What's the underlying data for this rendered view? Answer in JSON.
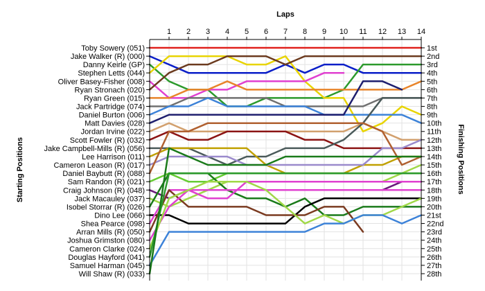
{
  "chart_data": {
    "type": "line",
    "title": "",
    "xlabel": "Laps",
    "ylabel_left": "Starting Positions",
    "ylabel_right": "Finishing Positions",
    "x": [
      0,
      1,
      2,
      3,
      4,
      5,
      6,
      7,
      8,
      9,
      10,
      11,
      12,
      13,
      14
    ],
    "x_tick_labels": [
      "1",
      "2",
      "3",
      "4",
      "5",
      "6",
      "7",
      "8",
      "9",
      "10",
      "11",
      "12",
      "13",
      "14"
    ],
    "ylim": [
      1,
      28
    ],
    "y_inverted": true,
    "grid": true,
    "starting_labels": [
      "Toby Sowery (051)",
      "Jake Walker (R) (000)",
      "Danny Keirle (GP)",
      "Stephen Letts (044)",
      "Oliver Basey-Fisher (008)",
      "Ryan Stronach (020)",
      "Ryan Green (015)",
      "Jack Partridge (074)",
      "Daniel Burton (006)",
      "Matt Davies (028)",
      "Jordan Irvine (022)",
      "Scott Fowler (R) (032)",
      "Jake Campbell-Mills (R) (056)",
      "Lee Harrison (011)",
      "Cameron Leason (R) (017)",
      "Daniel Baybutt (R) (088)",
      "Sam Randon (R) (021)",
      "Craig Johnson (R) (048)",
      "Jack Macauley (037)",
      "Isobel Storrar (R) (026)",
      "Dino Lee (066)",
      "Shea Pearce (098)",
      "Arran Mills (R) (050)",
      "Joshua Grimston (080)",
      "Cameron Clarke (024)",
      "Douglas Hayford (041)",
      "Samuel Harman (045)",
      "Will Shaw (R) (033)"
    ],
    "finishing_labels": [
      "1st",
      "2nd",
      "3rd",
      "4th",
      "5th",
      "6th",
      "7th",
      "8th",
      "9th",
      "10th",
      "11th",
      "12th",
      "13th",
      "14th",
      "15th",
      "16th",
      "17th",
      "18th",
      "19th",
      "20th",
      "21st",
      "22nd",
      "23rd",
      "24th",
      "25th",
      "26th",
      "27th",
      "28th"
    ],
    "series": [
      {
        "start": 1,
        "color": "#e0211c",
        "positions": [
          1,
          1,
          1,
          1,
          1,
          1,
          1,
          1,
          1,
          1,
          1,
          1,
          1,
          1,
          1
        ]
      },
      {
        "start": 2,
        "color": "#0a1ec8",
        "positions": [
          2,
          3,
          4,
          4,
          4,
          4,
          4,
          3,
          4,
          3,
          3,
          4,
          4,
          4,
          4
        ]
      },
      {
        "start": 3,
        "color": "#2c9a2c",
        "positions": [
          3,
          5,
          6,
          6,
          8,
          8,
          7,
          7,
          7,
          7,
          6,
          3,
          3,
          3,
          3
        ]
      },
      {
        "start": 4,
        "color": "#e8d400",
        "positions": [
          4,
          2,
          2,
          2,
          2,
          3,
          3,
          2,
          5,
          7,
          7,
          11,
          10,
          8,
          9
        ]
      },
      {
        "start": 5,
        "color": "#e040d0",
        "positions": [
          5,
          7,
          7,
          6,
          6,
          5,
          5,
          5,
          5,
          4,
          4,
          null,
          null,
          null,
          null
        ]
      },
      {
        "start": 6,
        "color": "#6b3a1e",
        "positions": [
          6,
          4,
          3,
          3,
          2,
          2,
          2,
          3,
          2,
          2,
          2,
          2,
          2,
          2,
          2
        ]
      },
      {
        "start": 7,
        "color": "#e8842a",
        "positions": [
          7,
          7,
          6,
          6,
          5,
          6,
          6,
          6,
          6,
          6,
          6,
          6,
          6,
          6,
          5
        ]
      },
      {
        "start": 8,
        "color": "#707070",
        "positions": [
          8,
          8,
          7,
          7,
          7,
          7,
          7,
          8,
          8,
          8,
          8,
          8,
          7,
          7,
          7
        ]
      },
      {
        "start": 9,
        "color": "#3c82d8",
        "positions": [
          9,
          8,
          8,
          7,
          8,
          8,
          8,
          8,
          8,
          9,
          9,
          9,
          9,
          9,
          10
        ]
      },
      {
        "start": 10,
        "color": "#1e1e6e",
        "positions": [
          10,
          9,
          9,
          9,
          9,
          9,
          9,
          9,
          9,
          9,
          9,
          5,
          5,
          6,
          null
        ]
      },
      {
        "start": 11,
        "color": "#d2a06e",
        "positions": [
          11,
          10,
          11,
          11,
          11,
          11,
          11,
          11,
          11,
          11,
          11,
          10,
          11,
          12,
          12
        ]
      },
      {
        "start": 12,
        "color": "#8c1414",
        "positions": [
          12,
          11,
          12,
          12,
          11,
          11,
          11,
          11,
          12,
          12,
          13,
          13,
          13,
          13,
          13
        ]
      },
      {
        "start": 13,
        "color": "#4a5a5a",
        "positions": [
          13,
          13,
          13,
          14,
          15,
          14,
          14,
          13,
          13,
          13,
          12,
          10,
          7,
          7,
          7
        ]
      },
      {
        "start": 14,
        "color": "#c0a000",
        "positions": [
          14,
          13,
          13,
          13,
          13,
          13,
          15,
          16,
          16,
          16,
          16,
          15,
          15,
          14,
          14
        ]
      },
      {
        "start": 15,
        "color": "#9a8acc",
        "positions": [
          15,
          14,
          14,
          14,
          14,
          15,
          15,
          15,
          15,
          15,
          15,
          15,
          13,
          13,
          12
        ]
      },
      {
        "start": 16,
        "color": "#b06030",
        "positions": [
          16,
          11,
          11,
          10,
          10,
          10,
          10,
          10,
          10,
          10,
          10,
          10,
          11,
          15,
          14
        ]
      },
      {
        "start": 17,
        "color": "#66cc33",
        "positions": [
          17,
          16,
          17,
          17,
          16,
          16,
          16,
          16,
          16,
          16,
          16,
          16,
          16,
          16,
          16
        ]
      },
      {
        "start": 18,
        "color": "#6a1a7a",
        "positions": [
          18,
          19,
          18,
          18,
          18,
          18,
          18,
          18,
          18,
          18,
          18,
          18,
          18,
          17,
          17
        ]
      },
      {
        "start": 19,
        "color": "#a0d848",
        "positions": [
          19,
          20,
          19,
          18,
          17,
          17,
          17,
          17,
          17,
          17,
          17,
          17,
          17,
          16,
          15
        ]
      },
      {
        "start": 20,
        "color": "#1a7a1a",
        "positions": [
          20,
          16,
          16,
          16,
          18,
          19,
          19,
          20,
          19,
          21,
          21,
          20,
          20,
          20,
          20
        ]
      },
      {
        "start": 21,
        "color": "#000000",
        "positions": [
          21,
          21,
          22,
          22,
          22,
          22,
          22,
          22,
          20,
          19,
          19,
          19,
          19,
          19,
          19
        ]
      },
      {
        "start": 22,
        "color": "#e040d0",
        "positions": [
          22,
          18,
          18,
          19,
          19,
          17,
          17,
          17,
          17,
          17,
          17,
          17,
          17,
          17,
          17
        ]
      },
      {
        "start": 23,
        "color": "#7a3a20",
        "positions": [
          23,
          18,
          20,
          20,
          20,
          20,
          21,
          21,
          21,
          20,
          20,
          23,
          null,
          null,
          null
        ]
      },
      {
        "start": 24,
        "color": "#e040d0",
        "positions": [
          24,
          20,
          18,
          18,
          18,
          18,
          18,
          18,
          18,
          18,
          18,
          18,
          18,
          18,
          18
        ]
      },
      {
        "start": 25,
        "color": "#a0d848",
        "positions": [
          25,
          19,
          18,
          17,
          17,
          17,
          18,
          20,
          22,
          21,
          22,
          21,
          21,
          20,
          19
        ]
      },
      {
        "start": 26,
        "color": "#2c9a2c",
        "positions": [
          26,
          16,
          16,
          16,
          16,
          16,
          16,
          16,
          16,
          16,
          16,
          16,
          16,
          16,
          16
        ]
      },
      {
        "start": 27,
        "color": "#3c82d8",
        "positions": [
          27,
          23,
          23,
          23,
          23,
          23,
          23,
          23,
          23,
          22,
          22,
          21,
          21,
          22,
          21
        ]
      },
      {
        "start": 28,
        "color": "#1a7a1a",
        "positions": [
          28,
          13,
          14,
          15,
          15,
          15,
          15,
          14,
          14,
          14,
          14,
          14,
          14,
          14,
          14
        ]
      }
    ]
  }
}
